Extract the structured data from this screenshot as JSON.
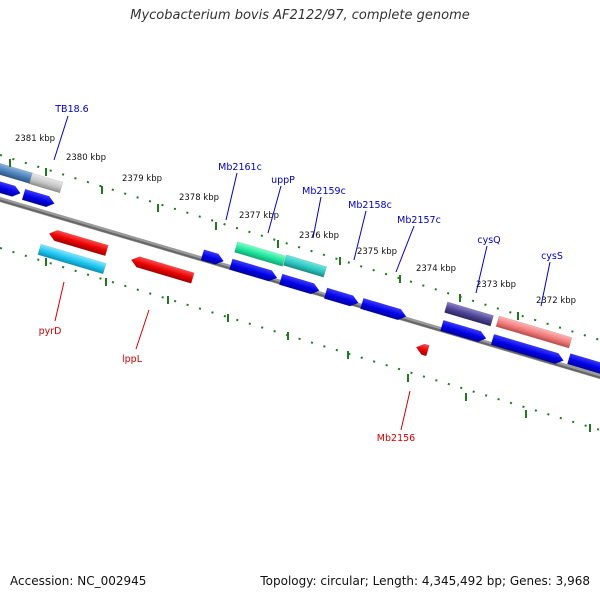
{
  "title": "Mycobacterium bovis AF2122/97, complete genome",
  "footer": {
    "accession": "Accession: NC_002945",
    "summary": "Topology: circular; Length: 4,345,492 bp; Genes: 3,968"
  },
  "colors": {
    "backbone": "#7a7a7a",
    "tick": "#1f7a1f",
    "forward_label": "#0000c8",
    "reverse_label": "#d00000"
  },
  "kbp_labels": [
    {
      "label": "2381 kbp"
    },
    {
      "label": "2380 kbp"
    },
    {
      "label": "2379 kbp"
    },
    {
      "label": "2378 kbp"
    },
    {
      "label": "2377 kbp"
    },
    {
      "label": "2376 kbp"
    },
    {
      "label": "2375 kbp"
    },
    {
      "label": "2374 kbp"
    },
    {
      "label": "2373 kbp"
    },
    {
      "label": "2372 kbp"
    }
  ],
  "gene_labels": [
    {
      "name": "TB18.6",
      "color": "#0000c8"
    },
    {
      "name": "Mb2161c",
      "color": "#0000c8"
    },
    {
      "name": "uppP",
      "color": "#0000c8"
    },
    {
      "name": "Mb2159c",
      "color": "#0000c8"
    },
    {
      "name": "Mb2158c",
      "color": "#0000c8"
    },
    {
      "name": "Mb2157c",
      "color": "#0000c8"
    },
    {
      "name": "cysQ",
      "color": "#0000c8"
    },
    {
      "name": "cysS",
      "color": "#0000c8"
    },
    {
      "name": "pyrD",
      "color": "#d00000"
    },
    {
      "name": "lppL",
      "color": "#d00000"
    },
    {
      "name": "Mb2156",
      "color": "#d00000"
    }
  ]
}
